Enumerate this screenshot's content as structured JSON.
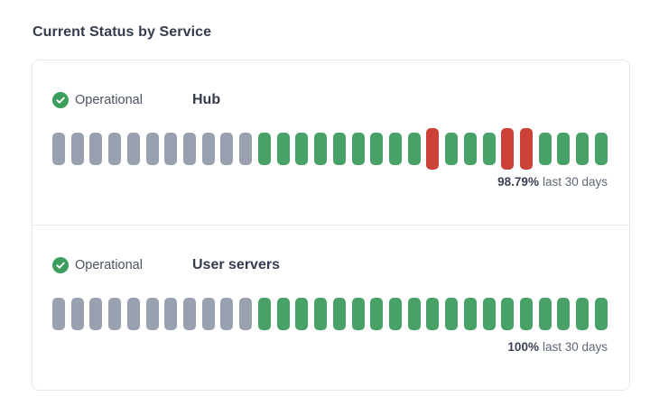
{
  "page": {
    "title": "Current Status by Service"
  },
  "colors": {
    "icon_green": "#3c9e5d",
    "bar_up": "#48a166",
    "bar_down": "#cc4238",
    "bar_nodata": "#99a1b0",
    "card_border": "#e6e8ec"
  },
  "services": [
    {
      "status_label": "Operational",
      "status_icon": "check-circle-icon",
      "name": "Hub",
      "uptime_percent": "98.79%",
      "uptime_suffix": "last 30 days",
      "days": [
        "nodata",
        "nodata",
        "nodata",
        "nodata",
        "nodata",
        "nodata",
        "nodata",
        "nodata",
        "nodata",
        "nodata",
        "nodata",
        "up",
        "up",
        "up",
        "up",
        "up",
        "up",
        "up",
        "up",
        "up",
        "down",
        "up",
        "up",
        "up",
        "down",
        "down",
        "up",
        "up",
        "up",
        "up"
      ]
    },
    {
      "status_label": "Operational",
      "status_icon": "check-circle-icon",
      "name": "User servers",
      "uptime_percent": "100%",
      "uptime_suffix": "last 30 days",
      "days": [
        "nodata",
        "nodata",
        "nodata",
        "nodata",
        "nodata",
        "nodata",
        "nodata",
        "nodata",
        "nodata",
        "nodata",
        "nodata",
        "up",
        "up",
        "up",
        "up",
        "up",
        "up",
        "up",
        "up",
        "up",
        "up",
        "up",
        "up",
        "up",
        "up",
        "up",
        "up",
        "up",
        "up",
        "up"
      ]
    }
  ]
}
